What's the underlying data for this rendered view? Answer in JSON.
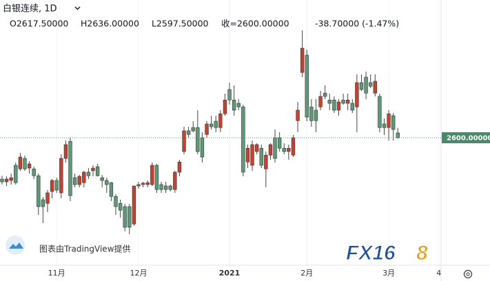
{
  "chart_data": {
    "type": "candlestick",
    "title": "白银连续, 1D",
    "legend": [
      "O2617.50000",
      "H2636.00000",
      "L2597.50000",
      "收=2600.00000",
      "-38.70000 (-1.47%)"
    ],
    "up_color": "#c8412f",
    "down_color": "#5b9b77",
    "ylim": [
      2137.5,
      3100
    ],
    "last_price": {
      "value": 2600,
      "label": "2600.00000"
    },
    "xlim": [
      -0.45,
      96.5
    ],
    "xticks": [
      {
        "value": 12,
        "label": "11月"
      },
      {
        "value": 30,
        "label": "12月"
      },
      {
        "value": 50,
        "label": "2021"
      },
      {
        "value": 67,
        "label": "2月"
      },
      {
        "value": 85,
        "label": "3月"
      },
      {
        "value": 96,
        "label": "4"
      }
    ],
    "open": [
      2450,
      2440,
      2445,
      2500,
      2487,
      2525,
      2490,
      2487,
      2462,
      2375,
      2362,
      2405,
      2445,
      2400,
      2525,
      2587,
      2455,
      2430,
      2437,
      2475,
      2480,
      2495,
      2455,
      2445,
      2437,
      2387,
      2362,
      2350,
      2350,
      2287,
      2425,
      2430,
      2430,
      2430,
      2500,
      2430,
      2425,
      2425,
      2412,
      2475,
      2550,
      2625,
      2637,
      2637,
      2600,
      2612,
      2650,
      2660,
      2637,
      2687,
      2775,
      2737,
      2725,
      2712,
      2512,
      2500,
      2550,
      2562,
      2487,
      2537,
      2600,
      2600,
      2562,
      2550,
      2537,
      2662,
      2837,
      2900,
      2712,
      2700,
      2712,
      2762,
      2737,
      2737,
      2700,
      2737,
      2725,
      2725,
      2712,
      2800,
      2820,
      2800,
      2762,
      2750,
      2650,
      2637,
      2680,
      2617.5
    ],
    "high": [
      2462,
      2460,
      2470,
      2510,
      2545,
      2535,
      2515,
      2495,
      2470,
      2385,
      2410,
      2450,
      2455,
      2540,
      2590,
      2600,
      2470,
      2465,
      2480,
      2490,
      2500,
      2505,
      2465,
      2455,
      2440,
      2395,
      2375,
      2360,
      2360,
      2420,
      2440,
      2440,
      2445,
      2510,
      2505,
      2440,
      2440,
      2430,
      2480,
      2520,
      2640,
      2640,
      2660,
      2700,
      2620,
      2660,
      2680,
      2680,
      2700,
      2760,
      2800,
      2790,
      2740,
      2720,
      2575,
      2590,
      2580,
      2575,
      2550,
      2580,
      2630,
      2620,
      2580,
      2575,
      2610,
      2730,
      2990,
      2920,
      2740,
      2740,
      2770,
      2790,
      2760,
      2750,
      2740,
      2760,
      2760,
      2740,
      2830,
      2830,
      2840,
      2830,
      2830,
      2760,
      2670,
      2700,
      2690,
      2636
    ],
    "low": [
      2430,
      2425,
      2430,
      2430,
      2480,
      2480,
      2470,
      2450,
      2320,
      2290,
      2330,
      2380,
      2400,
      2380,
      2510,
      2370,
      2420,
      2420,
      2420,
      2450,
      2460,
      2460,
      2420,
      2400,
      2370,
      2320,
      2310,
      2260,
      2250,
      2280,
      2415,
      2420,
      2420,
      2425,
      2400,
      2400,
      2400,
      2405,
      2400,
      2460,
      2540,
      2600,
      2620,
      2540,
      2510,
      2600,
      2630,
      2620,
      2620,
      2680,
      2720,
      2680,
      2700,
      2460,
      2490,
      2480,
      2540,
      2490,
      2420,
      2520,
      2510,
      2550,
      2540,
      2520,
      2530,
      2620,
      2820,
      2660,
      2640,
      2620,
      2700,
      2740,
      2700,
      2690,
      2680,
      2720,
      2700,
      2690,
      2620,
      2770,
      2740,
      2780,
      2750,
      2620,
      2610,
      2590,
      2590,
      2597.5
    ],
    "close": [
      2440,
      2450,
      2455,
      2437,
      2530,
      2487,
      2505,
      2462,
      2350,
      2350,
      2400,
      2445,
      2410,
      2525,
      2575,
      2390,
      2430,
      2460,
      2475,
      2462,
      2490,
      2462,
      2445,
      2430,
      2387,
      2350,
      2337,
      2275,
      2275,
      2425,
      2430,
      2435,
      2437,
      2500,
      2412,
      2412,
      2412,
      2412,
      2475,
      2512,
      2625,
      2612,
      2625,
      2550,
      2530,
      2650,
      2640,
      2637,
      2687,
      2737,
      2737,
      2700,
      2712,
      2475,
      2562,
      2575,
      2575,
      2500,
      2537,
      2575,
      2525,
      2562,
      2550,
      2562,
      2600,
      2700,
      2925,
      2675,
      2662,
      2662,
      2750,
      2750,
      2725,
      2700,
      2730,
      2725,
      2737,
      2700,
      2800,
      2775,
      2762,
      2787,
      2805,
      2637,
      2637,
      2687,
      2630,
      2600
    ],
    "watermark": "图表由TradingView提供",
    "logo": [
      "FX16",
      "8"
    ]
  }
}
